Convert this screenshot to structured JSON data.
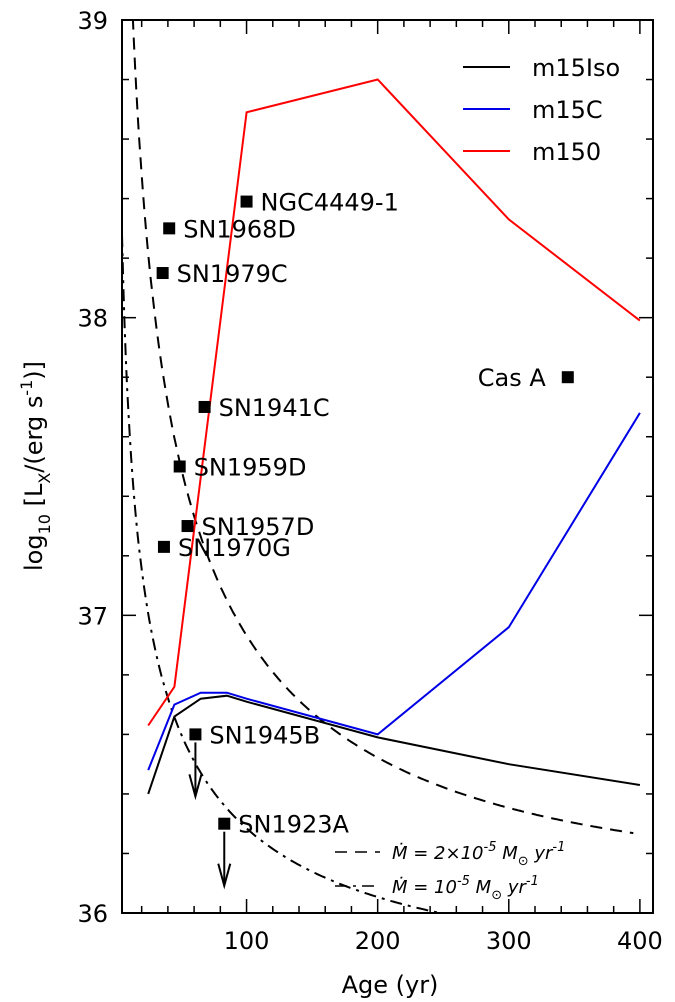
{
  "chart_data": {
    "type": "line",
    "xlabel": "Age (yr)",
    "ylabel_parts": {
      "pre": "log",
      "sub1": "10",
      "mid": " [L",
      "sub2": "X",
      "post": "/(erg s",
      "sup": "-1",
      "end": ")]"
    },
    "xlim": [
      5,
      410
    ],
    "ylim": [
      36,
      39
    ],
    "x_ticks": [
      100,
      200,
      300,
      400
    ],
    "y_ticks": [
      36,
      37,
      38,
      39
    ],
    "x_minor_step": 20,
    "y_minor_step": 0.2,
    "grid": false,
    "legend_position": "top-right",
    "series": [
      {
        "name": "m15Iso",
        "color": "#000000",
        "x": [
          25,
          45,
          65,
          85,
          100,
          200,
          300,
          400
        ],
        "y": [
          36.4,
          36.66,
          36.72,
          36.73,
          36.71,
          36.59,
          36.5,
          36.43
        ]
      },
      {
        "name": "m15C",
        "color": "#0000e6",
        "x": [
          25,
          45,
          65,
          85,
          100,
          200,
          300,
          400
        ],
        "y": [
          36.48,
          36.7,
          36.74,
          36.74,
          36.72,
          36.6,
          36.96,
          37.68
        ]
      },
      {
        "name": "m150",
        "color": "#ff0000",
        "x": [
          25,
          45,
          100,
          200,
          300,
          400
        ],
        "y": [
          36.63,
          36.76,
          38.69,
          38.8,
          38.33,
          37.99
        ]
      }
    ],
    "model_curves": [
      {
        "label_html": {
          "mdot": "Ṁ",
          "eq": " = 2×10",
          "exp": "-5",
          "unit": " M",
          "sun": "⊙",
          "yr": " yr",
          "yrexp": "-1"
        },
        "style": "dashed",
        "A": 36.16,
        "B": 0.16,
        "tau": 900,
        "x_start": 12,
        "x_end": 395
      },
      {
        "label_html": {
          "mdot": "Ṁ",
          "eq": " = 10",
          "exp": "-5",
          "unit": " M",
          "sun": "⊙",
          "yr": " yr",
          "yrexp": "-1"
        },
        "style": "dashdot",
        "A": 35.85,
        "B": 0.09,
        "tau": 900,
        "x_start": 5,
        "x_end": 395
      }
    ],
    "points": [
      {
        "label": "NGC4449-1",
        "x": 100,
        "y": 38.39,
        "label_side": "right",
        "upper_limit": false
      },
      {
        "label": "SN1968D",
        "x": 41,
        "y": 38.3,
        "label_side": "right",
        "upper_limit": false
      },
      {
        "label": "SN1979C",
        "x": 36,
        "y": 38.15,
        "label_side": "right",
        "upper_limit": false
      },
      {
        "label": "Cas A",
        "x": 345,
        "y": 37.8,
        "label_side": "left",
        "upper_limit": false
      },
      {
        "label": "SN1941C",
        "x": 68,
        "y": 37.7,
        "label_side": "right",
        "upper_limit": false
      },
      {
        "label": "SN1959D",
        "x": 49,
        "y": 37.5,
        "label_side": "right",
        "upper_limit": false
      },
      {
        "label": "SN1957D",
        "x": 55,
        "y": 37.3,
        "label_side": "right",
        "upper_limit": false
      },
      {
        "label": "SN1970G",
        "x": 37,
        "y": 37.23,
        "label_side": "right",
        "upper_limit": false
      },
      {
        "label": "SN1945B",
        "x": 61,
        "y": 36.6,
        "label_side": "right",
        "upper_limit": true
      },
      {
        "label": "SN1923A",
        "x": 83,
        "y": 36.3,
        "label_side": "right",
        "upper_limit": true
      }
    ]
  }
}
